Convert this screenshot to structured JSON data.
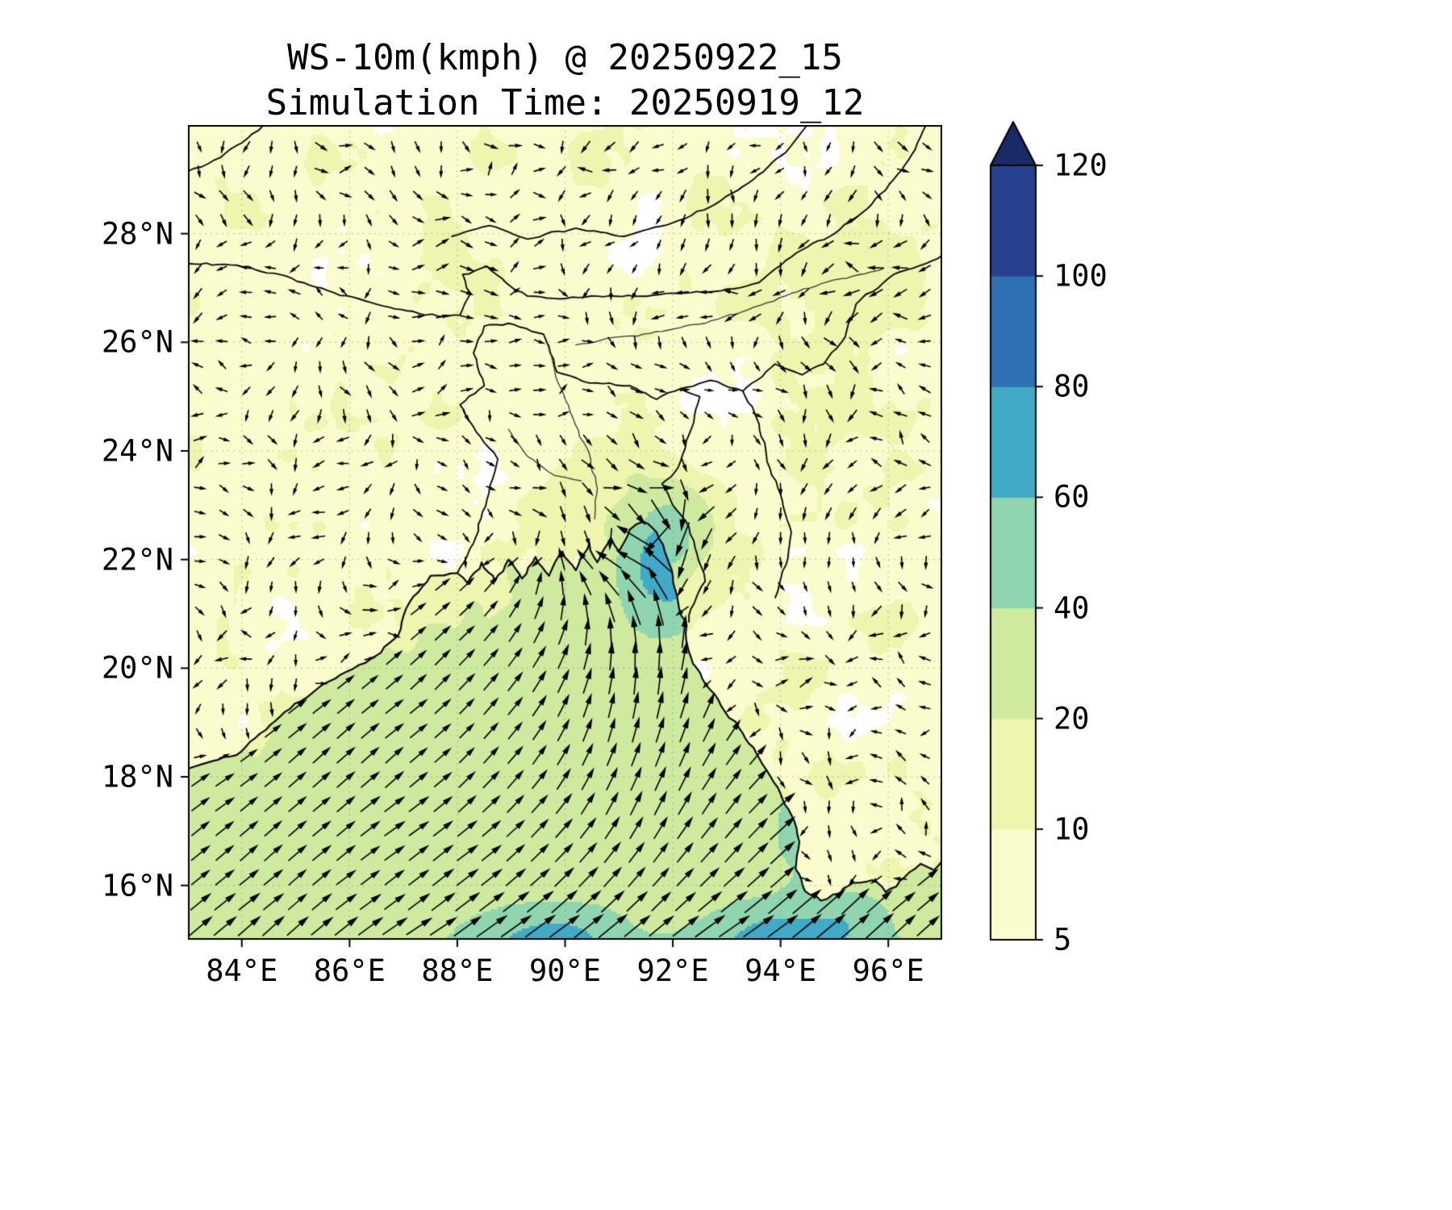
{
  "figure": {
    "title": "WS-10m(kmph) @ 20250922_15",
    "subtitle": "Simulation Time: 20250919_12"
  },
  "chart_data": {
    "type": "heatmap",
    "title": "WS-10m(kmph) @ 20250922_15",
    "subtitle": "Simulation Time: 20250919_12",
    "variable": "WS-10m",
    "units": "kmph",
    "valid_time": "20250922_15",
    "simulation_time": "20250919_12",
    "x_axis": {
      "range": [
        83,
        97
      ],
      "ticks": [
        84,
        86,
        88,
        90,
        92,
        94,
        96
      ],
      "tick_labels": [
        "84°E",
        "86°E",
        "88°E",
        "90°E",
        "92°E",
        "94°E",
        "96°E"
      ]
    },
    "y_axis": {
      "range": [
        15,
        30
      ],
      "ticks": [
        16,
        18,
        20,
        22,
        24,
        26,
        28
      ],
      "tick_labels": [
        "16°N",
        "18°N",
        "20°N",
        "22°N",
        "24°N",
        "26°N",
        "28°N"
      ]
    },
    "colorbar": {
      "extend": "max",
      "levels": [
        5,
        10,
        20,
        40,
        60,
        80,
        100,
        120
      ],
      "tick_labels": [
        "5",
        "10",
        "20",
        "40",
        "60",
        "80",
        "100",
        "120"
      ],
      "band_colors": [
        "#fbfccd",
        "#edf5ae",
        "#cdea9f",
        "#8fd5b0",
        "#41aac6",
        "#2e70b4",
        "#28418f"
      ],
      "extend_color": "#1a2a66",
      "under_color": "#ffffff"
    },
    "wind_field": {
      "description": "Strong southwesterly flow over the Bay of Bengal converging into a cyclonic circulation near the Bangladesh coast; weak variable winds inland",
      "vortex_center_lon": 91.85,
      "vortex_center_lat": 22.1,
      "vortex_max_speed_kmph": 75,
      "open_bay_speed_kmph": 30,
      "inland_speed_kmph": 8,
      "arrow_grid_spacing_deg": 0.45
    },
    "grid": {
      "visible": true,
      "style": "dotted"
    }
  }
}
